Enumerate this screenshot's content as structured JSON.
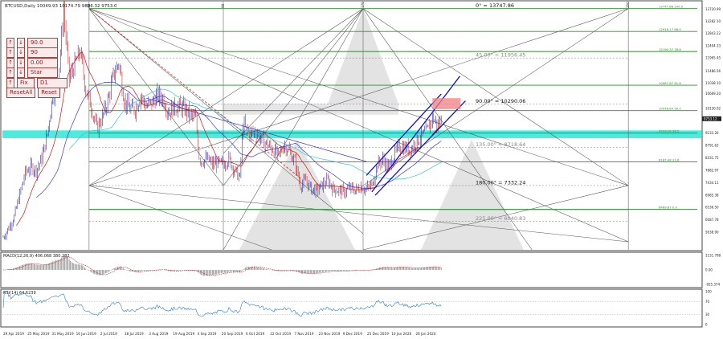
{
  "window": {
    "title": "BTCUSD,Daily  10049.93 10174.79 9896.32 9753.0"
  },
  "buttons": {
    "rows": [
      {
        "a": "↑",
        "b": "↓",
        "value": "90.0"
      },
      {
        "a": "↑",
        "b": "↓",
        "value": "90"
      },
      {
        "a": "↑",
        "b": "↓",
        "value": "0.00"
      },
      {
        "a": "↑",
        "b": "↓",
        "value": "Star"
      },
      {
        "a": "↑",
        "b": "Fix",
        "value": "D1"
      }
    ],
    "reset_all": "ResetAll",
    "reset": "Reset"
  },
  "colors": {
    "bull": "#1a1aa8",
    "bear": "#cc1414",
    "green": "#2d8c2d",
    "cyan": "#2ee8d8",
    "grid": "#888888"
  },
  "chart_data": [
    {
      "type": "line",
      "title": "BTCUSD,Daily  10049.93 10174.79 9896.32 9753.0",
      "ylim": [
        5000,
        14000
      ],
      "price_labels": [
        "13720.99",
        "13282.10",
        "12843.22",
        "12404.33",
        "11965.45",
        "11486.56",
        "11038.10",
        "10669.20",
        "10130.02",
        "9752.12",
        "9233.26",
        "8791.63",
        "8331.75",
        "7882.97",
        "7434.11",
        "6985.38",
        "6536.50",
        "6087.78",
        "5638.90"
      ],
      "levels": [
        {
          "price": 13747.86,
          "label": "13747.86 100.0"
        },
        {
          "price": 12918.17,
          "label": "12918.17 88.0"
        },
        {
          "price": 12190.37,
          "label": "12190.37 78.6"
        },
        {
          "price": 10967.67,
          "label": "10967.67 61.8"
        },
        {
          "price": 10046.84,
          "label": "10046.84 50.0"
        },
        {
          "price": 9233.26,
          "label": "9233.26 38.2"
        },
        {
          "price": 8187.48,
          "label": "8187.48 23.6"
        },
        {
          "price": 6469.87,
          "label": "6469.87 0.0"
        }
      ],
      "angles": [
        {
          "price": 13747.86,
          "label": "0° = 13747.86"
        },
        {
          "price": 11956.45,
          "label": "45.00° = 11956.45"
        },
        {
          "price": 10290.06,
          "label": "90.00° = 10290.06"
        },
        {
          "price": 8718.64,
          "label": "135.00° = 8718.64"
        },
        {
          "price": 7332.24,
          "label": "180.00° = 7332.24"
        },
        {
          "price": 6040.83,
          "label": "225.00° = 6040.83"
        }
      ],
      "current_price": "9753.12",
      "x_dates": [
        "29 Apr 2019",
        "25 May 2019",
        "31 May 2019",
        "16 Jun 2019",
        "2 Jul 2019",
        "18 Jul 2019",
        "3 Aug 2019",
        "19 Aug 2019",
        "4 Sep 2019",
        "20 Sep 2019",
        "6 Oct 2019",
        "22 Oct 2019",
        "7 Nov 2019",
        "23 Nov 2019",
        "9 Dec 2019",
        "25 Dec 2019",
        "10 Jan 2020",
        "26 Jan 2020"
      ],
      "vlines": [
        "48",
        "98",
        "170",
        "250"
      ],
      "close_path": [
        [
          0,
          5450
        ],
        [
          5,
          5800
        ],
        [
          10,
          6200
        ],
        [
          15,
          7000
        ],
        [
          20,
          7800
        ],
        [
          25,
          8000
        ],
        [
          30,
          7900
        ],
        [
          35,
          8300
        ],
        [
          40,
          9200
        ],
        [
          45,
          10600
        ],
        [
          50,
          11200
        ],
        [
          55,
          13700
        ],
        [
          60,
          11200
        ],
        [
          65,
          11700
        ],
        [
          70,
          12200
        ],
        [
          75,
          10800
        ],
        [
          80,
          10200
        ],
        [
          85,
          9400
        ],
        [
          90,
          9800
        ],
        [
          95,
          10400
        ],
        [
          100,
          11300
        ],
        [
          105,
          11800
        ],
        [
          110,
          10400
        ],
        [
          115,
          10100
        ],
        [
          120,
          10100
        ],
        [
          125,
          10600
        ],
        [
          130,
          10200
        ],
        [
          135,
          10300
        ],
        [
          140,
          10600
        ],
        [
          145,
          10500
        ],
        [
          150,
          10000
        ],
        [
          155,
          10150
        ],
        [
          160,
          10200
        ],
        [
          165,
          10100
        ],
        [
          170,
          9850
        ],
        [
          175,
          9750
        ],
        [
          178,
          8400
        ],
        [
          180,
          8200
        ],
        [
          185,
          8300
        ],
        [
          190,
          8100
        ],
        [
          195,
          8150
        ],
        [
          200,
          8100
        ],
        [
          205,
          8300
        ],
        [
          210,
          7900
        ],
        [
          215,
          7600
        ],
        [
          218,
          9600
        ],
        [
          220,
          9400
        ],
        [
          225,
          9200
        ],
        [
          230,
          9300
        ],
        [
          235,
          9000
        ],
        [
          240,
          8800
        ],
        [
          245,
          8650
        ],
        [
          250,
          8400
        ],
        [
          255,
          8800
        ],
        [
          260,
          8600
        ],
        [
          265,
          8200
        ],
        [
          270,
          7350
        ],
        [
          275,
          7500
        ],
        [
          280,
          7200
        ],
        [
          285,
          7150
        ],
        [
          290,
          7350
        ],
        [
          295,
          7500
        ],
        [
          300,
          7200
        ],
        [
          305,
          7150
        ],
        [
          310,
          7100
        ],
        [
          315,
          7250
        ],
        [
          320,
          7150
        ],
        [
          325,
          7300
        ],
        [
          330,
          7200
        ],
        [
          335,
          7350
        ],
        [
          338,
          7800
        ],
        [
          340,
          8100
        ],
        [
          345,
          8250
        ],
        [
          350,
          8000
        ],
        [
          355,
          8400
        ],
        [
          360,
          8750
        ],
        [
          365,
          8700
        ],
        [
          370,
          8650
        ],
        [
          375,
          8900
        ],
        [
          380,
          9100
        ],
        [
          385,
          9300
        ],
        [
          388,
          9600
        ],
        [
          390,
          9800
        ],
        [
          395,
          9500
        ],
        [
          398,
          9753
        ]
      ],
      "macd": {
        "label": "MACD(12,26,9) 406.068 380.282",
        "ticks": [
          "1131.798",
          "0.00",
          "-925.374"
        ]
      },
      "rsi": {
        "label": "RSI(14) 64.6239",
        "ticks": [
          "100",
          "70",
          "30",
          "0"
        ]
      }
    }
  ]
}
